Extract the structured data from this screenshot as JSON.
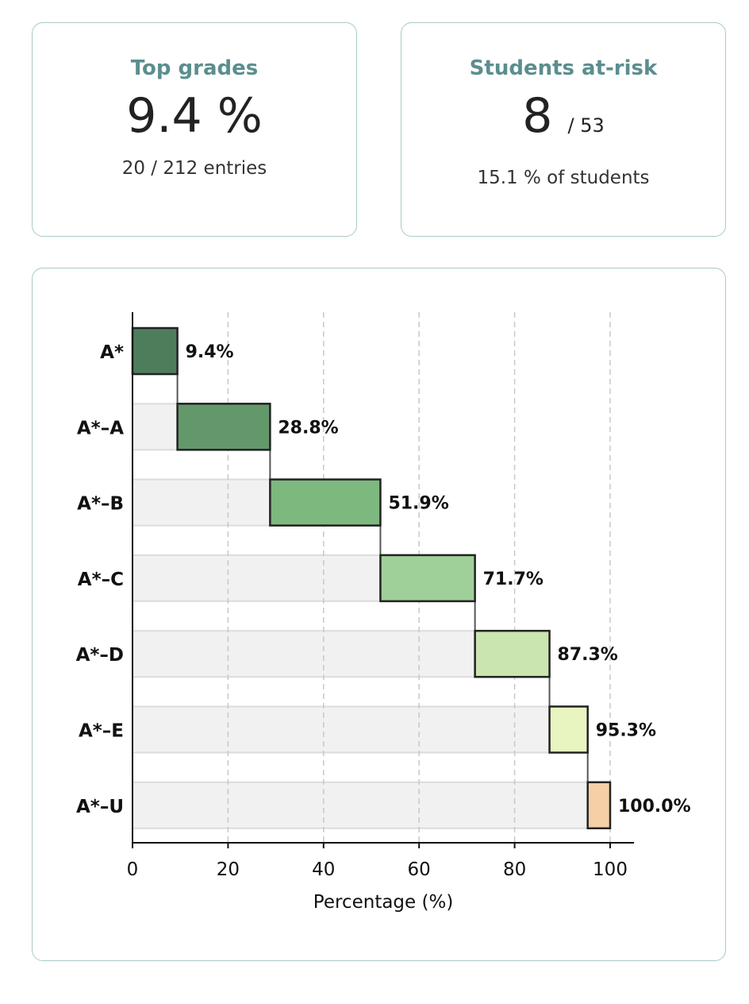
{
  "cards": [
    {
      "title": "Top grades",
      "value": "9.4 %",
      "denominator": "",
      "subtitle": "20 / 212 entries"
    },
    {
      "title": "Students at-risk",
      "value": "8",
      "denominator": "/ 53",
      "subtitle": "15.1 % of students"
    }
  ],
  "chart_data": {
    "type": "bar",
    "orientation": "horizontal-waterfall",
    "categories": [
      "A*",
      "A*–A",
      "A*–B",
      "A*–C",
      "A*–D",
      "A*–E",
      "A*–U"
    ],
    "values": [
      9.4,
      28.8,
      51.9,
      71.7,
      87.3,
      95.3,
      100.0
    ],
    "labels": [
      "9.4%",
      "28.8%",
      "51.9%",
      "71.7%",
      "87.3%",
      "95.3%",
      "100.0%"
    ],
    "colors": [
      "#4e7d5c",
      "#63986b",
      "#7db87f",
      "#a0d09a",
      "#cbe5af",
      "#e8f5c0",
      "#f5cfa6"
    ],
    "background_color": "#f1f1f1",
    "xlabel": "Percentage (%)",
    "xlim": [
      0,
      105
    ],
    "xticks": [
      0,
      20,
      40,
      60,
      80,
      100
    ],
    "grid": "vertical dashed"
  }
}
